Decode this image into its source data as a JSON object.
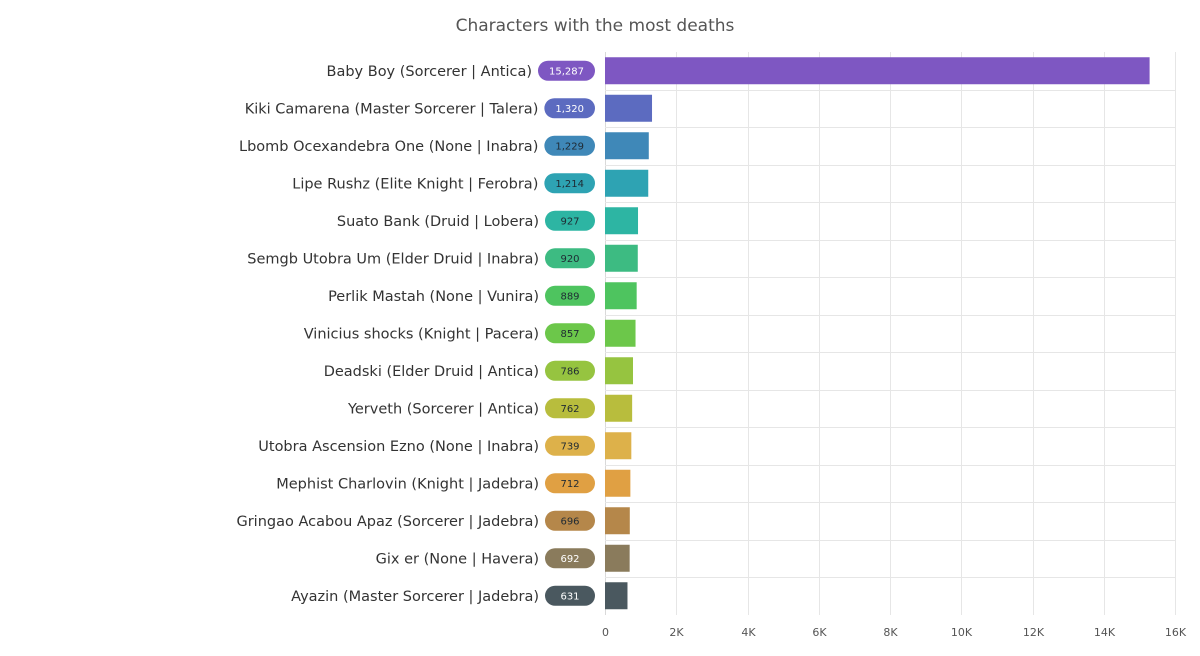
{
  "chart_data": {
    "type": "bar",
    "orientation": "horizontal",
    "title": "Characters with the most deaths",
    "xlabel": "",
    "ylabel": "",
    "xlim": [
      0,
      16000
    ],
    "x_ticks": [
      0,
      2000,
      4000,
      6000,
      8000,
      10000,
      12000,
      14000,
      16000
    ],
    "x_tick_labels": [
      "0",
      "2K",
      "4K",
      "6K",
      "8K",
      "10K",
      "12K",
      "14K",
      "16K"
    ],
    "grid": true,
    "legend": "none",
    "categories": [
      "Baby Boy (Sorcerer | Antica)",
      "Kiki Camarena (Master Sorcerer | Talera)",
      "Lbomb Ocexandebra One (None | Inabra)",
      "Lipe Rushz (Elite Knight | Ferobra)",
      "Suato Bank (Druid | Lobera)",
      "Semgb Utobra Um (Elder Druid | Inabra)",
      "Perlik Mastah (None | Vunira)",
      "Vinicius shocks (Knight | Pacera)",
      "Deadski (Elder Druid | Antica)",
      "Yerveth (Sorcerer | Antica)",
      "Utobra Ascension Ezno (None | Inabra)",
      "Mephist Charlovin (Knight | Jadebra)",
      "Gringao Acabou Apaz (Sorcerer | Jadebra)",
      "Gix er (None | Havera)",
      "Ayazin (Master Sorcerer | Jadebra)"
    ],
    "values": [
      15287,
      1320,
      1229,
      1214,
      927,
      920,
      889,
      857,
      786,
      762,
      739,
      712,
      696,
      692,
      631
    ],
    "value_labels": [
      "15,287",
      "1,320",
      "1,229",
      "1,214",
      "927",
      "920",
      "889",
      "857",
      "786",
      "762",
      "739",
      "712",
      "696",
      "692",
      "631"
    ],
    "colors": [
      "#7e57c2",
      "#5c6bc0",
      "#3f88b8",
      "#2ea3b3",
      "#2db5a3",
      "#3dbb82",
      "#4ec45f",
      "#6cc74a",
      "#96c440",
      "#b8bd3d",
      "#ddb14a",
      "#e0a043",
      "#b5874a",
      "#8a7b5c",
      "#4a585f"
    ],
    "badge_text_colors": [
      "#ffffff",
      "#ffffff",
      "#1f2a33",
      "#1f2a33",
      "#1f2a33",
      "#1f2a33",
      "#1f2a33",
      "#1f2a33",
      "#1f2a33",
      "#1f2a33",
      "#1f2a33",
      "#1f2a33",
      "#1f2a33",
      "#ffffff",
      "#ffffff"
    ]
  }
}
